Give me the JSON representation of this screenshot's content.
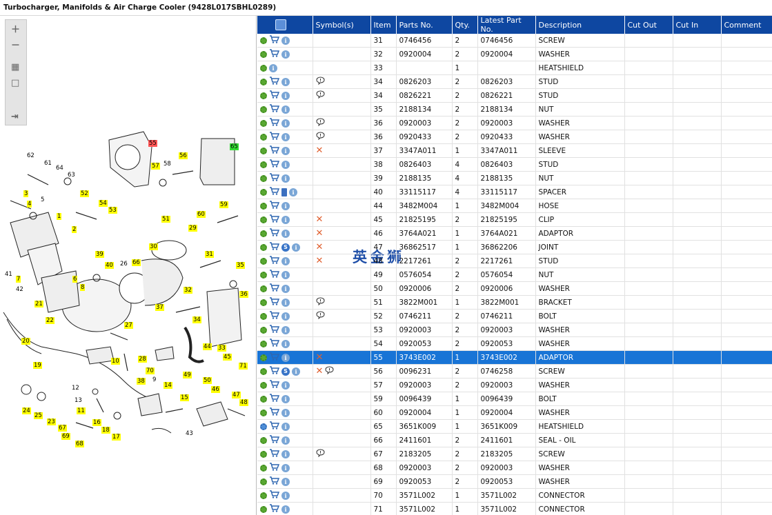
{
  "window": {
    "title": "Turbocharger, Manifolds & Air Charge Cooler (9428L017SBHL0289)"
  },
  "watermark": "英金狮",
  "diagram": {
    "labels": [
      {
        "t": "55",
        "c": "r"
      },
      {
        "t": "65",
        "c": "gr"
      },
      {
        "t": "62",
        "c": ""
      },
      {
        "t": "61",
        "c": ""
      },
      {
        "t": "64",
        "c": ""
      },
      {
        "t": "63",
        "c": ""
      },
      {
        "t": "57",
        "c": "y"
      },
      {
        "t": "58",
        "c": ""
      },
      {
        "t": "56",
        "c": "y"
      },
      {
        "t": "3",
        "c": "y"
      },
      {
        "t": "5",
        "c": ""
      },
      {
        "t": "4",
        "c": "y"
      },
      {
        "t": "52",
        "c": "y"
      },
      {
        "t": "54",
        "c": "y"
      },
      {
        "t": "53",
        "c": "y"
      },
      {
        "t": "51",
        "c": "y"
      },
      {
        "t": "59",
        "c": "y"
      },
      {
        "t": "1",
        "c": "y"
      },
      {
        "t": "60",
        "c": "y"
      },
      {
        "t": "2",
        "c": "y"
      },
      {
        "t": "29",
        "c": "y"
      },
      {
        "t": "30",
        "c": "y"
      },
      {
        "t": "39",
        "c": "y"
      },
      {
        "t": "26",
        "c": ""
      },
      {
        "t": "66",
        "c": "y"
      },
      {
        "t": "31",
        "c": "y"
      },
      {
        "t": "40",
        "c": "y"
      },
      {
        "t": "35",
        "c": "y"
      },
      {
        "t": "41",
        "c": ""
      },
      {
        "t": "7",
        "c": "y"
      },
      {
        "t": "6",
        "c": "y"
      },
      {
        "t": "42",
        "c": ""
      },
      {
        "t": "8",
        "c": "y"
      },
      {
        "t": "32",
        "c": "y"
      },
      {
        "t": "36",
        "c": "y"
      },
      {
        "t": "21",
        "c": "y"
      },
      {
        "t": "37",
        "c": "y"
      },
      {
        "t": "22",
        "c": "y"
      },
      {
        "t": "34",
        "c": "y"
      },
      {
        "t": "27",
        "c": "y"
      },
      {
        "t": "20",
        "c": "y"
      },
      {
        "t": "44",
        "c": "y"
      },
      {
        "t": "33",
        "c": "y"
      },
      {
        "t": "19",
        "c": "y"
      },
      {
        "t": "28",
        "c": "y"
      },
      {
        "t": "10",
        "c": "y"
      },
      {
        "t": "45",
        "c": "y"
      },
      {
        "t": "70",
        "c": "y"
      },
      {
        "t": "71",
        "c": "y"
      },
      {
        "t": "38",
        "c": "y"
      },
      {
        "t": "9",
        "c": ""
      },
      {
        "t": "49",
        "c": "y"
      },
      {
        "t": "50",
        "c": "y"
      },
      {
        "t": "12",
        "c": ""
      },
      {
        "t": "14",
        "c": "y"
      },
      {
        "t": "46",
        "c": "y"
      },
      {
        "t": "47",
        "c": "y"
      },
      {
        "t": "13",
        "c": ""
      },
      {
        "t": "48",
        "c": "y"
      },
      {
        "t": "11",
        "c": "y"
      },
      {
        "t": "15",
        "c": "y"
      },
      {
        "t": "24",
        "c": "y"
      },
      {
        "t": "25",
        "c": "y"
      },
      {
        "t": "23",
        "c": "y"
      },
      {
        "t": "16",
        "c": "y"
      },
      {
        "t": "67",
        "c": "y"
      },
      {
        "t": "18",
        "c": "y"
      },
      {
        "t": "69",
        "c": "y"
      },
      {
        "t": "17",
        "c": "y"
      },
      {
        "t": "43",
        "c": ""
      },
      {
        "t": "68",
        "c": "y"
      }
    ]
  },
  "table": {
    "headers": [
      "",
      "Symbol(s)",
      "Item",
      "Parts No.",
      "Qty.",
      "Latest Part No.",
      "Description",
      "Cut Out",
      "Cut In",
      "Comment"
    ],
    "rows": [
      {
        "item": "31",
        "part": "0746456",
        "qty": "2",
        "latest": "0746456",
        "desc": "SCREW",
        "icons": "gci",
        "sym": ""
      },
      {
        "item": "32",
        "part": "0920004",
        "qty": "2",
        "latest": "0920004",
        "desc": "WASHER",
        "icons": "gci",
        "sym": ""
      },
      {
        "item": "33",
        "part": "",
        "qty": "1",
        "latest": "",
        "desc": "HEATSHIELD",
        "icons": "gi",
        "sym": ""
      },
      {
        "item": "34",
        "part": "0826203",
        "qty": "2",
        "latest": "0826203",
        "desc": "STUD",
        "icons": "gci",
        "sym": "b"
      },
      {
        "item": "34",
        "part": "0826221",
        "qty": "2",
        "latest": "0826221",
        "desc": "STUD",
        "icons": "gci",
        "sym": "b"
      },
      {
        "item": "35",
        "part": "2188134",
        "qty": "2",
        "latest": "2188134",
        "desc": "NUT",
        "icons": "gci",
        "sym": ""
      },
      {
        "item": "36",
        "part": "0920003",
        "qty": "2",
        "latest": "0920003",
        "desc": "WASHER",
        "icons": "gci",
        "sym": "b"
      },
      {
        "item": "36",
        "part": "0920433",
        "qty": "2",
        "latest": "0920433",
        "desc": "WASHER",
        "icons": "gci",
        "sym": "b"
      },
      {
        "item": "37",
        "part": "3347A011",
        "qty": "1",
        "latest": "3347A011",
        "desc": "SLEEVE",
        "icons": "gci",
        "sym": "x"
      },
      {
        "item": "38",
        "part": "0826403",
        "qty": "4",
        "latest": "0826403",
        "desc": "STUD",
        "icons": "gci",
        "sym": ""
      },
      {
        "item": "39",
        "part": "2188135",
        "qty": "4",
        "latest": "2188135",
        "desc": "NUT",
        "icons": "gci",
        "sym": ""
      },
      {
        "item": "40",
        "part": "33115117",
        "qty": "4",
        "latest": "33115117",
        "desc": "SPACER",
        "icons": "gcbi",
        "sym": ""
      },
      {
        "item": "44",
        "part": "3482M004",
        "qty": "1",
        "latest": "3482M004",
        "desc": "HOSE",
        "icons": "gci",
        "sym": ""
      },
      {
        "item": "45",
        "part": "21825195",
        "qty": "2",
        "latest": "21825195",
        "desc": "CLIP",
        "icons": "gci",
        "sym": "x"
      },
      {
        "item": "46",
        "part": "3764A021",
        "qty": "1",
        "latest": "3764A021",
        "desc": "ADAPTOR",
        "icons": "gci",
        "sym": "x"
      },
      {
        "item": "47",
        "part": "36862517",
        "qty": "1",
        "latest": "36862206",
        "desc": "JOINT",
        "icons": "gcsi",
        "sym": "x"
      },
      {
        "item": "48",
        "part": "2217261",
        "qty": "2",
        "latest": "2217261",
        "desc": "STUD",
        "icons": "gci",
        "sym": "x"
      },
      {
        "item": "49",
        "part": "0576054",
        "qty": "2",
        "latest": "0576054",
        "desc": "NUT",
        "icons": "gci",
        "sym": ""
      },
      {
        "item": "50",
        "part": "0920006",
        "qty": "2",
        "latest": "0920006",
        "desc": "WASHER",
        "icons": "gci",
        "sym": ""
      },
      {
        "item": "51",
        "part": "3822M001",
        "qty": "1",
        "latest": "3822M001",
        "desc": "BRACKET",
        "icons": "gci",
        "sym": "b"
      },
      {
        "item": "52",
        "part": "0746211",
        "qty": "2",
        "latest": "0746211",
        "desc": "BOLT",
        "icons": "gci",
        "sym": "b"
      },
      {
        "item": "53",
        "part": "0920003",
        "qty": "2",
        "latest": "0920003",
        "desc": "WASHER",
        "icons": "gci",
        "sym": ""
      },
      {
        "item": "54",
        "part": "0920053",
        "qty": "2",
        "latest": "0920053",
        "desc": "WASHER",
        "icons": "gci",
        "sym": ""
      },
      {
        "item": "55",
        "part": "3743E002",
        "qty": "1",
        "latest": "3743E002",
        "desc": "ADAPTOR",
        "icons": "gci",
        "sym": "x",
        "selected": true
      },
      {
        "item": "56",
        "part": "0096231",
        "qty": "2",
        "latest": "0746258",
        "desc": "SCREW",
        "icons": "gcsi",
        "sym": "xb"
      },
      {
        "item": "57",
        "part": "0920003",
        "qty": "2",
        "latest": "0920003",
        "desc": "WASHER",
        "icons": "gci",
        "sym": ""
      },
      {
        "item": "59",
        "part": "0096439",
        "qty": "1",
        "latest": "0096439",
        "desc": "BOLT",
        "icons": "gci",
        "sym": ""
      },
      {
        "item": "60",
        "part": "0920004",
        "qty": "1",
        "latest": "0920004",
        "desc": "WASHER",
        "icons": "gci",
        "sym": ""
      },
      {
        "item": "65",
        "part": "3651K009",
        "qty": "1",
        "latest": "3651K009",
        "desc": "HEATSHIELD",
        "icons": "Gci",
        "sym": ""
      },
      {
        "item": "66",
        "part": "2411601",
        "qty": "2",
        "latest": "2411601",
        "desc": "SEAL - OIL",
        "icons": "gci",
        "sym": ""
      },
      {
        "item": "67",
        "part": "2183205",
        "qty": "2",
        "latest": "2183205",
        "desc": "SCREW",
        "icons": "gci",
        "sym": "b"
      },
      {
        "item": "68",
        "part": "0920003",
        "qty": "2",
        "latest": "0920003",
        "desc": "WASHER",
        "icons": "gci",
        "sym": ""
      },
      {
        "item": "69",
        "part": "0920053",
        "qty": "2",
        "latest": "0920053",
        "desc": "WASHER",
        "icons": "gci",
        "sym": ""
      },
      {
        "item": "70",
        "part": "3571L002",
        "qty": "1",
        "latest": "3571L002",
        "desc": "CONNECTOR",
        "icons": "gci",
        "sym": ""
      },
      {
        "item": "71",
        "part": "3571L002",
        "qty": "1",
        "latest": "3571L002",
        "desc": "CONNECTOR",
        "icons": "gci",
        "sym": ""
      }
    ]
  },
  "colors": {
    "header": "#0e47a1",
    "selected": "#1874d6",
    "highlight_label": "#ffff00"
  }
}
